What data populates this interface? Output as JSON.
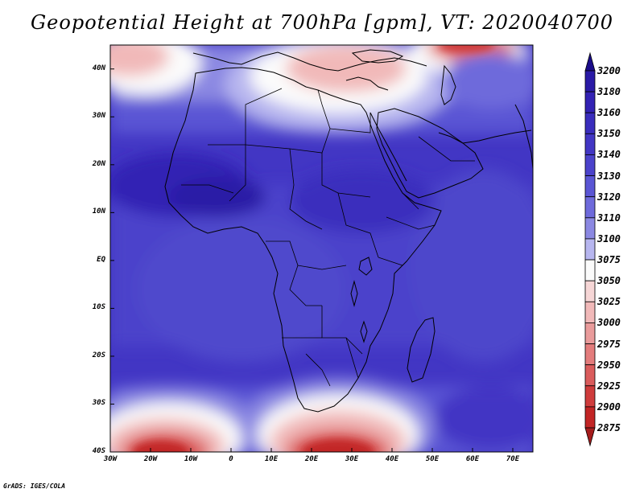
{
  "title": "Geopotential Height at 700hPa [gpm], VT: 2020040700",
  "footer": "GrADS: IGES/COLA",
  "map": {
    "lat_labels": [
      "40N",
      "30N",
      "20N",
      "10N",
      "EQ",
      "10S",
      "20S",
      "30S",
      "40S"
    ],
    "lon_labels": [
      "30W",
      "20W",
      "10W",
      "0",
      "10E",
      "20E",
      "30E",
      "40E",
      "50E",
      "60E",
      "70E"
    ],
    "lon_range": [
      -30,
      75
    ],
    "lat_range": [
      -40,
      45
    ]
  },
  "colorbar": {
    "levels": [
      "3200",
      "3180",
      "3160",
      "3150",
      "3140",
      "3130",
      "3120",
      "3110",
      "3100",
      "3075",
      "3050",
      "3025",
      "3000",
      "2975",
      "2950",
      "2925",
      "2900",
      "2875"
    ],
    "colors": [
      "#1a0c8a",
      "#2a1aa6",
      "#3322b4",
      "#3a2dbd",
      "#4236c4",
      "#4b42cb",
      "#5a55d4",
      "#6e6adb",
      "#8b88e2",
      "#b7b6ef",
      "#fbfbfb",
      "#f6d6d6",
      "#f1b9b9",
      "#e99b9b",
      "#e37c7c",
      "#da5c5c",
      "#cf3c3c",
      "#c22525",
      "#a51c1c"
    ]
  }
}
